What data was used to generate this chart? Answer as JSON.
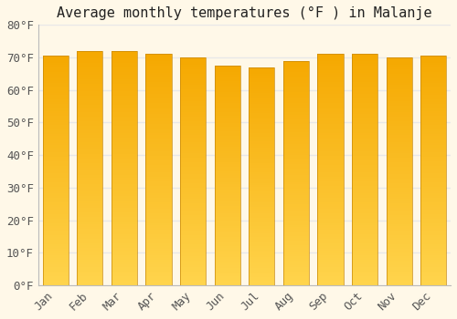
{
  "months": [
    "Jan",
    "Feb",
    "Mar",
    "Apr",
    "May",
    "Jun",
    "Jul",
    "Aug",
    "Sep",
    "Oct",
    "Nov",
    "Dec"
  ],
  "values": [
    70.5,
    72.0,
    72.0,
    71.0,
    70.0,
    67.5,
    67.0,
    69.0,
    71.0,
    71.0,
    70.0,
    70.5
  ],
  "title": "Average monthly temperatures (°F ) in Malanje",
  "ylabel_ticks": [
    "0°F",
    "10°F",
    "20°F",
    "30°F",
    "40°F",
    "50°F",
    "60°F",
    "70°F",
    "80°F"
  ],
  "ytick_vals": [
    0,
    10,
    20,
    30,
    40,
    50,
    60,
    70,
    80
  ],
  "ylim": [
    0,
    80
  ],
  "bar_color_bottom": "#FFD44C",
  "bar_color_mid": "#FFBC1A",
  "bar_color_top": "#F5A800",
  "bar_border_color": "#C8890A",
  "background_color": "#FFF8E8",
  "grid_color": "#E8E8E8",
  "title_fontsize": 11,
  "tick_fontsize": 9,
  "font_family": "monospace"
}
